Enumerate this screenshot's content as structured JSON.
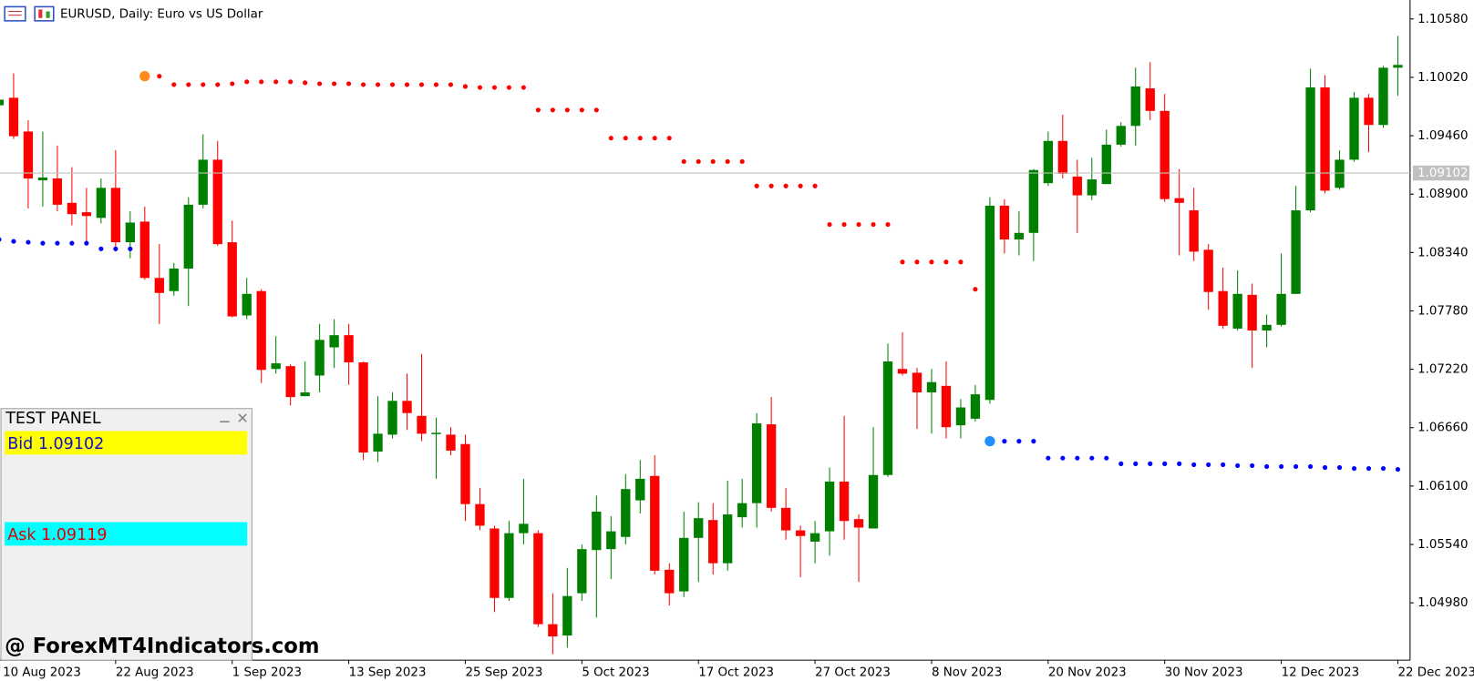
{
  "chart_data": {
    "type": "candlestick",
    "title": "EURUSD, Daily:  Euro vs US Dollar",
    "categories": [
      "10 Aug 2023",
      null,
      null,
      null,
      null,
      null,
      null,
      null,
      "22 Aug 2023",
      null,
      null,
      null,
      null,
      null,
      null,
      null,
      "1 Sep 2023",
      null,
      null,
      null,
      null,
      null,
      null,
      null,
      "13 Sep 2023",
      null,
      null,
      null,
      null,
      null,
      null,
      null,
      "25 Sep 2023",
      null,
      null,
      null,
      null,
      null,
      null,
      null,
      "5 Oct 2023",
      null,
      null,
      null,
      null,
      null,
      null,
      null,
      "17 Oct 2023",
      null,
      null,
      null,
      null,
      null,
      null,
      null,
      "27 Oct 2023",
      null,
      null,
      null,
      null,
      null,
      null,
      null,
      "8 Nov 2023",
      null,
      null,
      null,
      null,
      null,
      null,
      null,
      "20 Nov 2023",
      null,
      null,
      null,
      null,
      null,
      null,
      null,
      "30 Nov 2023",
      null,
      null,
      null,
      null,
      null,
      null,
      null,
      "12 Dec 2023",
      null,
      null,
      null,
      null,
      null,
      null,
      null,
      "22 Dec 2023"
    ],
    "open": [
      1.09752,
      1.09824,
      1.095,
      1.09032,
      1.0905,
      1.08816,
      1.08726,
      1.08672,
      1.0896,
      1.08438,
      1.08636,
      1.08096,
      1.0797,
      1.08186,
      1.08798,
      1.0923,
      1.08438,
      1.07736,
      1.0797,
      1.07223,
      1.0725,
      1.06962,
      1.0716,
      1.0743,
      1.07547,
      1.07286,
      1.06431,
      1.06593,
      1.06917,
      1.06773,
      1.06602,
      1.06593,
      1.06503,
      1.05927,
      1.05693,
      1.05027,
      1.05648,
      1.05648,
      1.04775,
      1.04667,
      1.05072,
      1.05486,
      1.05495,
      1.05612,
      1.05963,
      1.06197,
      1.05297,
      1.0509,
      1.05603,
      1.05774,
      1.0536,
      1.05801,
      1.05936,
      1.06692,
      1.05891,
      1.05675,
      1.05567,
      1.05666,
      1.06143,
      1.05783,
      1.05693,
      1.06206,
      1.07223,
      1.07187,
      1.06998,
      1.07061,
      1.06683,
      1.06746,
      1.06926,
      1.08789,
      1.08465,
      1.08528,
      1.09005,
      1.0941,
      1.09068,
      1.08888,
      1.08996,
      1.09374,
      1.09554,
      1.09914,
      1.09698,
      1.08861,
      1.08744,
      1.08366,
      1.0797,
      1.0761,
      1.07934,
      1.07592,
      1.07646,
      1.07943,
      1.08744,
      1.09923,
      1.0896,
      1.0923,
      1.09824,
      1.09563,
      1.10112
    ],
    "high": [
      1.0986,
      1.10058,
      1.09608,
      1.095,
      1.09365,
      1.09158,
      1.0896,
      1.0905,
      1.0932,
      1.08735,
      1.0878,
      1.0842,
      1.0824,
      1.0887,
      1.09473,
      1.0941,
      1.08645,
      1.08096,
      1.07988,
      1.07538,
      1.07268,
      1.07295,
      1.07655,
      1.077,
      1.07655,
      1.07295,
      1.06962,
      1.06998,
      1.07178,
      1.07367,
      1.06755,
      1.06665,
      1.06593,
      1.0608,
      1.0572,
      1.05765,
      1.0617,
      1.05675,
      1.05072,
      1.05315,
      1.0554,
      1.06008,
      1.0581,
      1.06215,
      1.0635,
      1.06395,
      1.0536,
      1.05855,
      1.05945,
      1.05936,
      1.06152,
      1.0617,
      1.068,
      1.06953,
      1.0608,
      1.0572,
      1.05765,
      1.06278,
      1.06773,
      1.05828,
      1.06665,
      1.07466,
      1.07574,
      1.07232,
      1.07223,
      1.07295,
      1.06935,
      1.0707,
      1.0887,
      1.08852,
      1.08735,
      1.0914,
      1.095,
      1.09662,
      1.0923,
      1.09248,
      1.09518,
      1.0959,
      1.10112,
      1.10166,
      1.0986,
      1.0914,
      1.0896,
      1.0842,
      1.08195,
      1.08168,
      1.08042,
      1.07745,
      1.0833,
      1.08978,
      1.10103,
      1.1004,
      1.0932,
      1.09878,
      1.0986,
      1.1013,
      1.10418
    ],
    "low": [
      1.09725,
      1.09428,
      1.08762,
      1.0878,
      1.08735,
      1.086,
      1.08438,
      1.08618,
      1.08348,
      1.08285,
      1.08078,
      1.07655,
      1.07925,
      1.07826,
      1.08762,
      1.08402,
      1.07718,
      1.077,
      1.07088,
      1.07178,
      1.06872,
      1.06962,
      1.06998,
      1.07232,
      1.0707,
      1.0635,
      1.06332,
      1.06557,
      1.06638,
      1.0653,
      1.0617,
      1.06395,
      1.05765,
      1.05675,
      1.04892,
      1.05,
      1.0554,
      1.04748,
      1.04487,
      1.0455,
      1.05,
      1.04838,
      1.05207,
      1.0554,
      1.05837,
      1.05252,
      1.04955,
      1.05036,
      1.0518,
      1.05252,
      1.05288,
      1.05702,
      1.05702,
      1.05855,
      1.05585,
      1.05225,
      1.0536,
      1.05432,
      1.05585,
      1.0518,
      1.05693,
      1.06188,
      1.0716,
      1.06647,
      1.06602,
      1.06557,
      1.06557,
      1.06719,
      1.0689,
      1.0833,
      1.08312,
      1.08258,
      1.08978,
      1.0905,
      1.08528,
      1.08843,
      1.08996,
      1.09356,
      1.09365,
      1.09608,
      1.08825,
      1.08312,
      1.08258,
      1.0779,
      1.0761,
      1.07592,
      1.07232,
      1.0743,
      1.07628,
      1.07943,
      1.08726,
      1.08906,
      1.08942,
      1.09212,
      1.09302,
      1.09536,
      1.09842
    ],
    "close": [
      1.09806,
      1.09455,
      1.0905,
      1.09059,
      1.08798,
      1.08708,
      1.0869,
      1.0896,
      1.08438,
      1.08627,
      1.08096,
      1.07952,
      1.08186,
      1.08798,
      1.0923,
      1.0842,
      1.07727,
      1.07943,
      1.07214,
      1.07277,
      1.06953,
      1.06998,
      1.07502,
      1.07547,
      1.07286,
      1.06422,
      1.06602,
      1.06917,
      1.068,
      1.06602,
      1.06611,
      1.0644,
      1.05927,
      1.0572,
      1.05027,
      1.05648,
      1.05738,
      1.04775,
      1.04658,
      1.05045,
      1.05495,
      1.05855,
      1.05666,
      1.06071,
      1.0617,
      1.05288,
      1.05072,
      1.05603,
      1.05792,
      1.0536,
      1.05828,
      1.05936,
      1.06701,
      1.05891,
      1.05675,
      1.05621,
      1.05648,
      1.06143,
      1.05765,
      1.05702,
      1.06206,
      1.07295,
      1.07178,
      1.06998,
      1.07097,
      1.06665,
      1.06854,
      1.0698,
      1.08789,
      1.08465,
      1.08528,
      1.09131,
      1.0941,
      1.09095,
      1.08888,
      1.09041,
      1.09374,
      1.09554,
      1.09932,
      1.09698,
      1.08852,
      1.08816,
      1.08348,
      1.07961,
      1.07637,
      1.07943,
      1.07592,
      1.07646,
      1.07943,
      1.08744,
      1.09923,
      1.08933,
      1.0923,
      1.09824,
      1.09563,
      1.10112,
      1.10139
    ],
    "sar": [
      1.08465,
      1.08447,
      1.08438,
      1.08429,
      1.08429,
      1.08429,
      1.08429,
      1.08375,
      1.08375,
      1.08375,
      1.10031,
      1.10031,
      1.0995,
      1.0995,
      1.0995,
      1.0995,
      1.09959,
      1.09977,
      1.09977,
      1.09977,
      1.09977,
      1.09968,
      1.09959,
      1.09959,
      1.09959,
      1.0995,
      1.0995,
      1.0995,
      1.0995,
      1.0995,
      1.0995,
      1.0995,
      1.09932,
      1.09923,
      1.09923,
      1.09923,
      1.09923,
      1.09707,
      1.09707,
      1.09707,
      1.09707,
      1.09707,
      1.09437,
      1.09437,
      1.09437,
      1.09437,
      1.09437,
      1.09212,
      1.09212,
      1.09212,
      1.09212,
      1.09212,
      1.08978,
      1.08978,
      1.08978,
      1.08978,
      1.08978,
      1.08609,
      1.08609,
      1.08609,
      1.08609,
      1.08609,
      1.08249,
      1.08249,
      1.08249,
      1.08249,
      1.08249,
      1.07988,
      1.0653,
      1.0653,
      1.0653,
      1.0653,
      1.06368,
      1.06368,
      1.06368,
      1.06368,
      1.06368,
      1.06314,
      1.06314,
      1.06314,
      1.06314,
      1.06314,
      1.06305,
      1.06305,
      1.06305,
      1.06296,
      1.06296,
      1.06287,
      1.06287,
      1.06287,
      1.06287,
      1.06278,
      1.06278,
      1.06269,
      1.06269,
      1.06269,
      1.0626
    ],
    "up_color": "#008000",
    "down_color": "#ff0000",
    "sar_colors": {
      "above": "#ff0000",
      "below": "#0000ff",
      "flip_above": "#ff8c1a",
      "flip_below": "#1e90ff"
    },
    "bid_line": 1.09102,
    "ylim": [
      1.0443,
      1.1076
    ],
    "yticks": [
      {
        "value": 1.1058,
        "label": "1.10580"
      },
      {
        "value": 1.1002,
        "label": "1.10020"
      },
      {
        "value": 1.0946,
        "label": "1.09460"
      },
      {
        "value": 1.089,
        "label": "1.08900"
      },
      {
        "value": 1.0834,
        "label": "1.08340"
      },
      {
        "value": 1.0778,
        "label": "1.07780"
      },
      {
        "value": 1.0722,
        "label": "1.07220"
      },
      {
        "value": 1.0666,
        "label": "1.06660"
      },
      {
        "value": 1.061,
        "label": "1.06100"
      },
      {
        "value": 1.0554,
        "label": "1.05540"
      },
      {
        "value": 1.0498,
        "label": "1.04980"
      }
    ],
    "grid": false
  },
  "panel": {
    "title": "TEST PANEL",
    "bid": "Bid 1.09102",
    "ask": "Ask 1.09119"
  },
  "watermark": "@ ForexMT4Indicators.com"
}
